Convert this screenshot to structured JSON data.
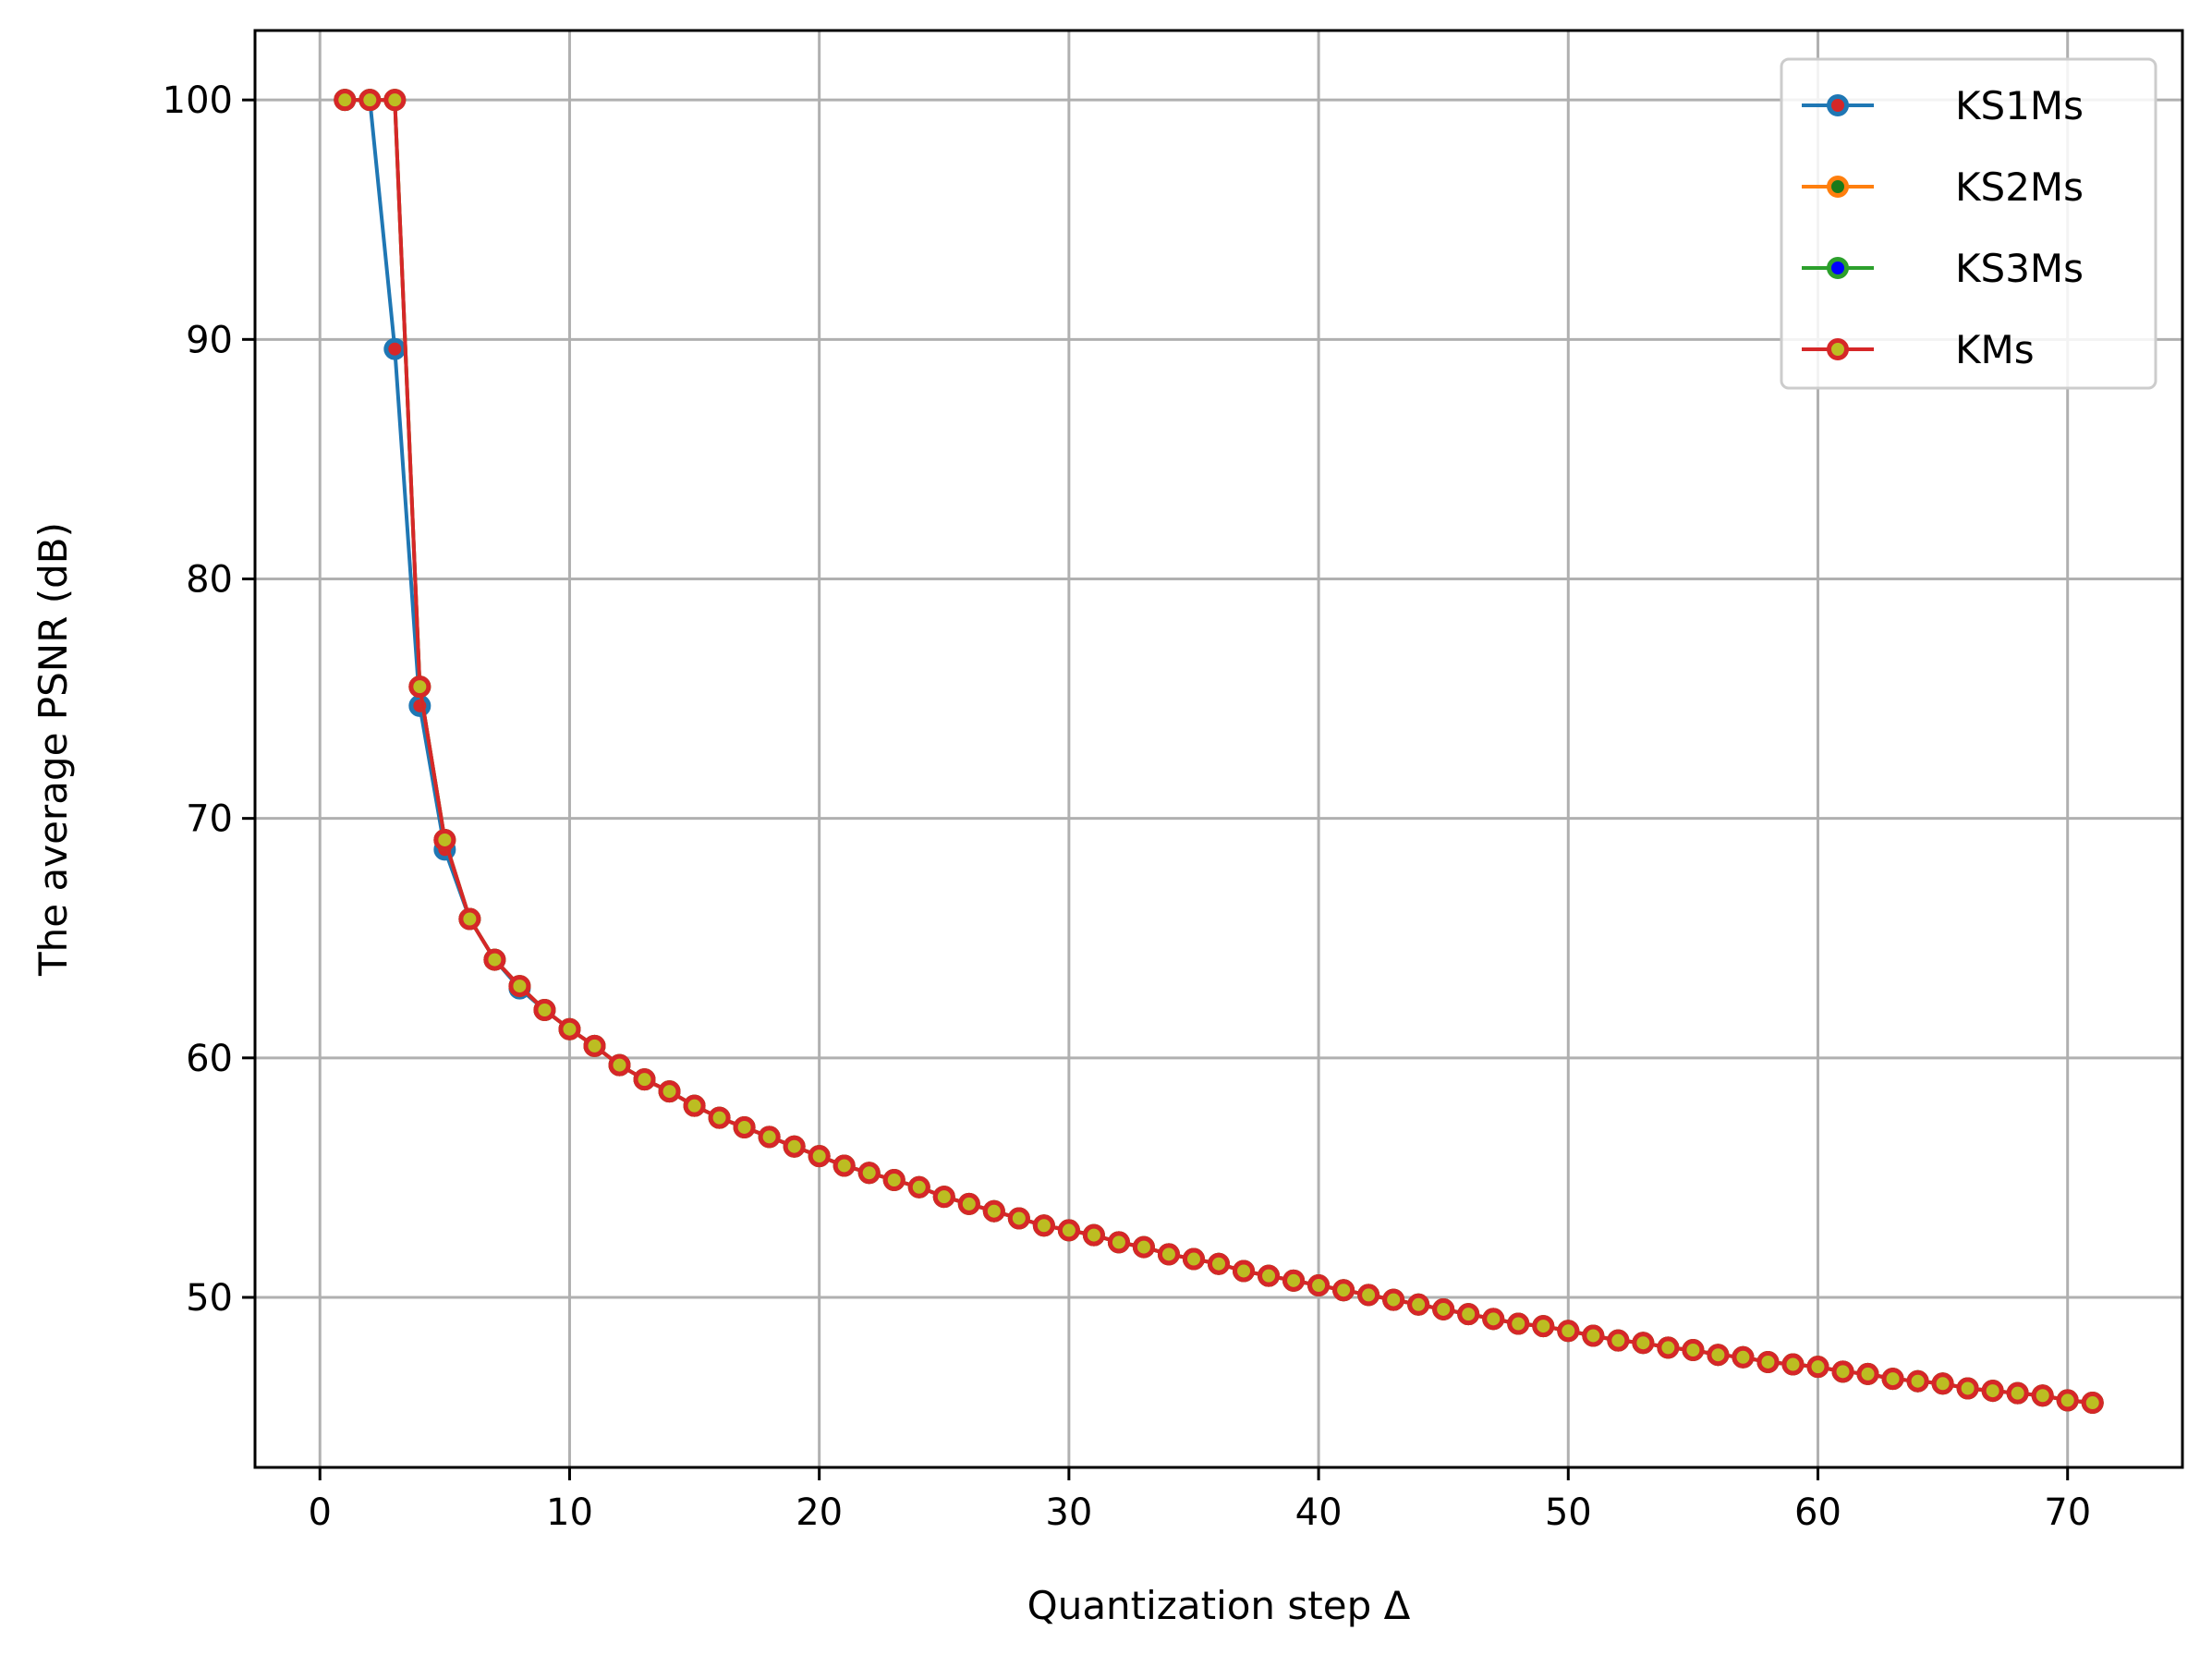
{
  "chart_data": {
    "type": "line",
    "xlabel": "Quantization step Δ",
    "ylabel": "The average PSNR (dB)",
    "xlim": [
      -2.6,
      74.6
    ],
    "ylim": [
      42.9,
      102.9
    ],
    "x_ticks": [
      "0",
      "10",
      "20",
      "30",
      "40",
      "50",
      "60",
      "70"
    ],
    "y_ticks": [
      "50",
      "60",
      "70",
      "80",
      "90",
      "100"
    ],
    "grid": true,
    "legend_position": "top-right",
    "series": [
      {
        "name": "KS1Ms",
        "color": "#1f77b4",
        "marker_face": "#d62728",
        "x": [
          1,
          2,
          3,
          4,
          5,
          6,
          7,
          8,
          9,
          10,
          11,
          12,
          13,
          14,
          15,
          16,
          17,
          18,
          19,
          20,
          21,
          22,
          23,
          24,
          25,
          26,
          27,
          28,
          29,
          30,
          31,
          32,
          33,
          34,
          35,
          36,
          37,
          38,
          39,
          40,
          41,
          42,
          43,
          44,
          45,
          46,
          47,
          48,
          49,
          50,
          51,
          52,
          53,
          54,
          55,
          56,
          57,
          58,
          59,
          60,
          61,
          62,
          63,
          64,
          65,
          66,
          67,
          68,
          69,
          70,
          71
        ],
        "values": [
          100,
          100,
          89.6,
          74.7,
          68.7,
          65.8,
          64.1,
          62.9,
          62.0,
          61.2,
          60.5,
          59.7,
          59.1,
          58.6,
          58.0,
          57.5,
          57.1,
          56.7,
          56.3,
          55.9,
          55.5,
          55.2,
          54.9,
          54.6,
          54.2,
          53.9,
          53.6,
          53.3,
          53.0,
          52.8,
          52.6,
          52.3,
          52.1,
          51.8,
          51.6,
          51.4,
          51.1,
          50.9,
          50.7,
          50.5,
          50.3,
          50.1,
          49.9,
          49.7,
          49.5,
          49.3,
          49.1,
          48.9,
          48.8,
          48.6,
          48.4,
          48.2,
          48.1,
          47.9,
          47.8,
          47.6,
          47.5,
          47.3,
          47.2,
          47.1,
          46.9,
          46.8,
          46.6,
          46.5,
          46.4,
          46.2,
          46.1,
          46.0,
          45.9,
          45.7,
          45.6
        ]
      },
      {
        "name": "KS2Ms",
        "color": "#ff7f0e",
        "marker_face": "#1a7a1a",
        "x": [
          1,
          2,
          3,
          4,
          5,
          6,
          7,
          8,
          9,
          10,
          11,
          12,
          13,
          14,
          15,
          16,
          17,
          18,
          19,
          20,
          21,
          22,
          23,
          24,
          25,
          26,
          27,
          28,
          29,
          30,
          31,
          32,
          33,
          34,
          35,
          36,
          37,
          38,
          39,
          40,
          41,
          42,
          43,
          44,
          45,
          46,
          47,
          48,
          49,
          50,
          51,
          52,
          53,
          54,
          55,
          56,
          57,
          58,
          59,
          60,
          61,
          62,
          63,
          64,
          65,
          66,
          67,
          68,
          69,
          70,
          71
        ],
        "values": [
          100,
          100,
          100,
          75.5,
          69.1,
          65.8,
          64.1,
          63.0,
          62.0,
          61.2,
          60.5,
          59.7,
          59.1,
          58.6,
          58.0,
          57.5,
          57.1,
          56.7,
          56.3,
          55.9,
          55.5,
          55.2,
          54.9,
          54.6,
          54.2,
          53.9,
          53.6,
          53.3,
          53.0,
          52.8,
          52.6,
          52.3,
          52.1,
          51.8,
          51.6,
          51.4,
          51.1,
          50.9,
          50.7,
          50.5,
          50.3,
          50.1,
          49.9,
          49.7,
          49.5,
          49.3,
          49.1,
          48.9,
          48.8,
          48.6,
          48.4,
          48.2,
          48.1,
          47.9,
          47.8,
          47.6,
          47.5,
          47.3,
          47.2,
          47.1,
          46.9,
          46.8,
          46.6,
          46.5,
          46.4,
          46.2,
          46.1,
          46.0,
          45.9,
          45.7,
          45.6
        ]
      },
      {
        "name": "KS3Ms",
        "color": "#2ca02c",
        "marker_face": "#0000ff",
        "x": [
          1,
          2,
          3,
          4,
          5,
          6,
          7,
          8,
          9,
          10,
          11,
          12,
          13,
          14,
          15,
          16,
          17,
          18,
          19,
          20,
          21,
          22,
          23,
          24,
          25,
          26,
          27,
          28,
          29,
          30,
          31,
          32,
          33,
          34,
          35,
          36,
          37,
          38,
          39,
          40,
          41,
          42,
          43,
          44,
          45,
          46,
          47,
          48,
          49,
          50,
          51,
          52,
          53,
          54,
          55,
          56,
          57,
          58,
          59,
          60,
          61,
          62,
          63,
          64,
          65,
          66,
          67,
          68,
          69,
          70,
          71
        ],
        "values": [
          100,
          100,
          100,
          75.5,
          69.1,
          65.8,
          64.1,
          63.0,
          62.0,
          61.2,
          60.5,
          59.7,
          59.1,
          58.6,
          58.0,
          57.5,
          57.1,
          56.7,
          56.3,
          55.9,
          55.5,
          55.2,
          54.9,
          54.6,
          54.2,
          53.9,
          53.6,
          53.3,
          53.0,
          52.8,
          52.6,
          52.3,
          52.1,
          51.8,
          51.6,
          51.4,
          51.1,
          50.9,
          50.7,
          50.5,
          50.3,
          50.1,
          49.9,
          49.7,
          49.5,
          49.3,
          49.1,
          48.9,
          48.8,
          48.6,
          48.4,
          48.2,
          48.1,
          47.9,
          47.8,
          47.6,
          47.5,
          47.3,
          47.2,
          47.1,
          46.9,
          46.8,
          46.6,
          46.5,
          46.4,
          46.2,
          46.1,
          46.0,
          45.9,
          45.7,
          45.6
        ]
      },
      {
        "name": "KMs",
        "color": "#d62728",
        "marker_face": "#bcbd22",
        "x": [
          1,
          2,
          3,
          4,
          5,
          6,
          7,
          8,
          9,
          10,
          11,
          12,
          13,
          14,
          15,
          16,
          17,
          18,
          19,
          20,
          21,
          22,
          23,
          24,
          25,
          26,
          27,
          28,
          29,
          30,
          31,
          32,
          33,
          34,
          35,
          36,
          37,
          38,
          39,
          40,
          41,
          42,
          43,
          44,
          45,
          46,
          47,
          48,
          49,
          50,
          51,
          52,
          53,
          54,
          55,
          56,
          57,
          58,
          59,
          60,
          61,
          62,
          63,
          64,
          65,
          66,
          67,
          68,
          69,
          70,
          71
        ],
        "values": [
          100,
          100,
          100,
          75.5,
          69.1,
          65.8,
          64.1,
          63.0,
          62.0,
          61.2,
          60.5,
          59.7,
          59.1,
          58.6,
          58.0,
          57.5,
          57.1,
          56.7,
          56.3,
          55.9,
          55.5,
          55.2,
          54.9,
          54.6,
          54.2,
          53.9,
          53.6,
          53.3,
          53.0,
          52.8,
          52.6,
          52.3,
          52.1,
          51.8,
          51.6,
          51.4,
          51.1,
          50.9,
          50.7,
          50.5,
          50.3,
          50.1,
          49.9,
          49.7,
          49.5,
          49.3,
          49.1,
          48.9,
          48.8,
          48.6,
          48.4,
          48.2,
          48.1,
          47.9,
          47.8,
          47.6,
          47.5,
          47.3,
          47.2,
          47.1,
          46.9,
          46.8,
          46.6,
          46.5,
          46.4,
          46.2,
          46.1,
          46.0,
          45.9,
          45.7,
          45.6
        ]
      }
    ]
  }
}
